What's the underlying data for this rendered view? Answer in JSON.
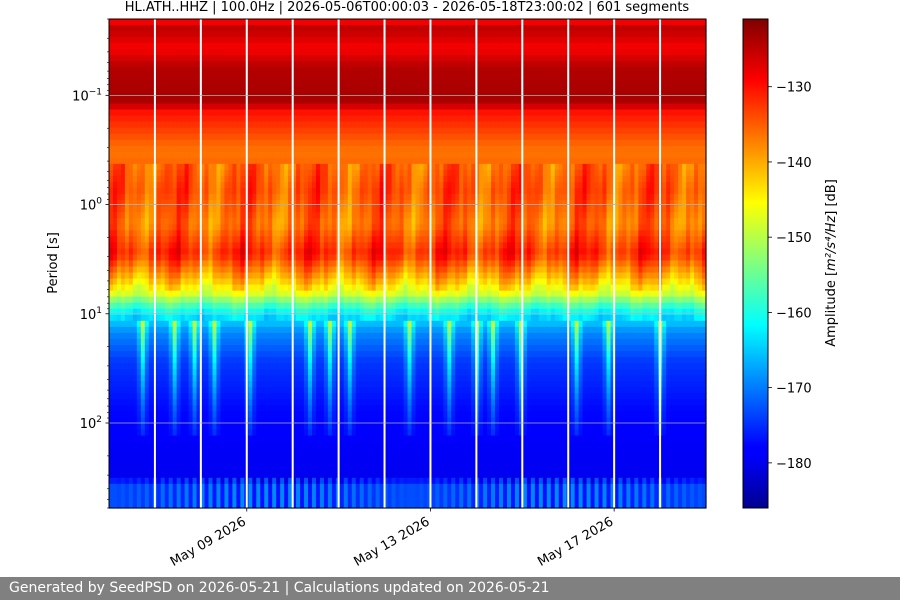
{
  "chart_data": {
    "type": "heatmap",
    "title": "HL.ATH..HHZ | 100.0Hz | 2026-05-06T00:00:03 - 2026-05-18T23:00:02 | 601 segments",
    "ylabel": "Period [s]",
    "y_scale": "log",
    "y_inverted": true,
    "ylim": [
      0.02,
      600
    ],
    "y_ticks": [
      {
        "value": 0.1,
        "base": "10",
        "exp": "−1"
      },
      {
        "value": 1,
        "base": "10",
        "exp": "0"
      },
      {
        "value": 10,
        "base": "10",
        "exp": "1"
      },
      {
        "value": 100,
        "base": "10",
        "exp": "2"
      }
    ],
    "x_start": "2026-05-06",
    "x_end": "2026-05-19",
    "x_ticks": [
      {
        "date": "2026-05-09",
        "label": "May 09 2026"
      },
      {
        "date": "2026-05-13",
        "label": "May 13 2026"
      },
      {
        "date": "2026-05-17",
        "label": "May 17 2026"
      }
    ],
    "gaps": [
      "2026-05-07",
      "2026-05-08",
      "2026-05-09",
      "2026-05-10",
      "2026-05-11",
      "2026-05-12",
      "2026-05-13",
      "2026-05-14",
      "2026-05-15",
      "2026-05-16",
      "2026-05-17",
      "2026-05-18"
    ],
    "grid": true,
    "colormap": "jet",
    "colorbar": {
      "label_prefix": "Amplitude [",
      "label_math": "m²/s⁴/Hz",
      "label_suffix": "] [dB]",
      "min": -186,
      "max": -121,
      "ticks": [
        -130,
        -140,
        -150,
        -160,
        -170,
        -180
      ]
    }
  },
  "footer": {
    "text": "Generated by SeedPSD on 2026-05-21 | Calculations updated on 2026-05-21"
  }
}
